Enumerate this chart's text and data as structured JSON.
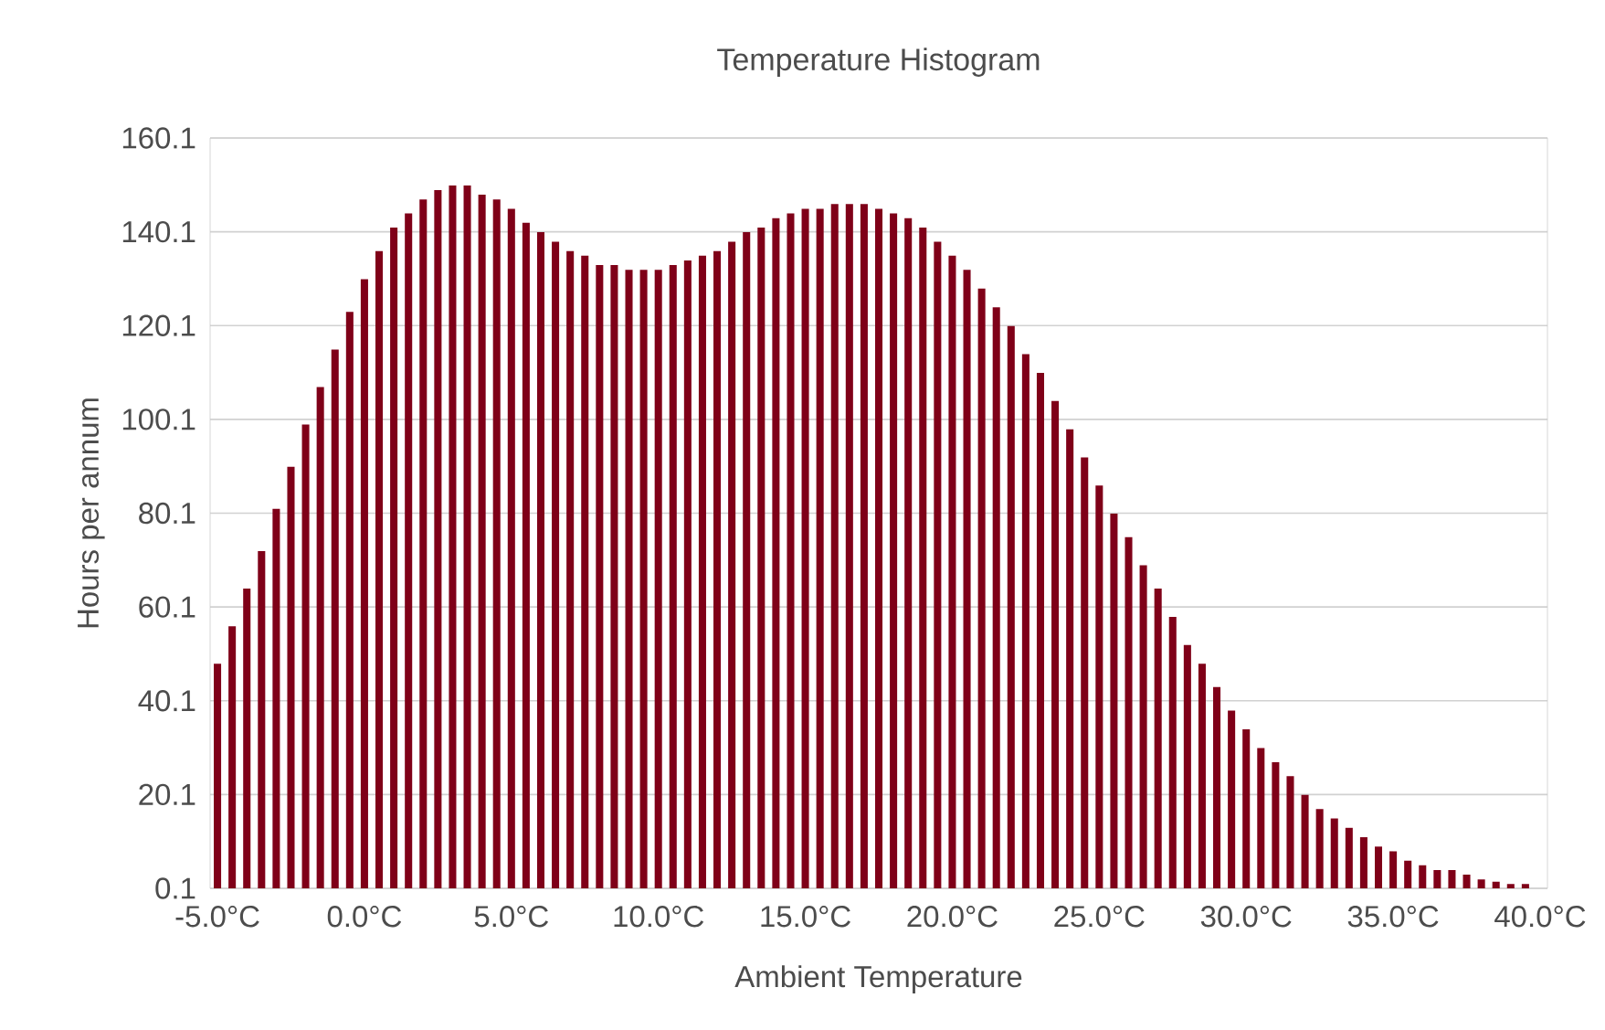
{
  "chart_data": {
    "type": "bar",
    "title": "Temperature Histogram",
    "xlabel": "Ambient Temperature",
    "ylabel": "Hours per annum",
    "x": [
      -5.0,
      -4.5,
      -4.0,
      -3.5,
      -3.0,
      -2.5,
      -2.0,
      -1.5,
      -1.0,
      -0.5,
      0.0,
      0.5,
      1.0,
      1.5,
      2.0,
      2.5,
      3.0,
      3.5,
      4.0,
      4.5,
      5.0,
      5.5,
      6.0,
      6.5,
      7.0,
      7.5,
      8.0,
      8.5,
      9.0,
      9.5,
      10.0,
      10.5,
      11.0,
      11.5,
      12.0,
      12.5,
      13.0,
      13.5,
      14.0,
      14.5,
      15.0,
      15.5,
      16.0,
      16.5,
      17.0,
      17.5,
      18.0,
      18.5,
      19.0,
      19.5,
      20.0,
      20.5,
      21.0,
      21.5,
      22.0,
      22.5,
      23.0,
      23.5,
      24.0,
      24.5,
      25.0,
      25.5,
      26.0,
      26.5,
      27.0,
      27.5,
      28.0,
      28.5,
      29.0,
      29.5,
      30.0,
      30.5,
      31.0,
      31.5,
      32.0,
      32.5,
      33.0,
      33.5,
      34.0,
      34.5,
      35.0,
      35.5,
      36.0,
      36.5,
      37.0,
      37.5,
      38.0,
      38.5,
      39.0,
      39.5
    ],
    "values": [
      48,
      56,
      64,
      72,
      81,
      90,
      99,
      107,
      115,
      123,
      130,
      136,
      141,
      144,
      147,
      149,
      150,
      150,
      148,
      147,
      145,
      142,
      140,
      138,
      136,
      135,
      133,
      133,
      132,
      132,
      132,
      133,
      134,
      135,
      136,
      138,
      140,
      141,
      143,
      144,
      145,
      145,
      146,
      146,
      146,
      145,
      144,
      143,
      141,
      138,
      135,
      132,
      128,
      124,
      120,
      114,
      110,
      104,
      98,
      92,
      86,
      80,
      75,
      69,
      64,
      58,
      52,
      48,
      43,
      38,
      34,
      30,
      27,
      24,
      20,
      17,
      15,
      13,
      11,
      9,
      8,
      6,
      5,
      4,
      4,
      3,
      2,
      1.5,
      1,
      1
    ],
    "color": "#7f0018",
    "xlim": [
      -5.25,
      40.25
    ],
    "xticks": [
      {
        "value": -5,
        "label": "-5.0°C"
      },
      {
        "value": 0,
        "label": "0.0°C"
      },
      {
        "value": 5,
        "label": "5.0°C"
      },
      {
        "value": 10,
        "label": "10.0°C"
      },
      {
        "value": 15,
        "label": "15.0°C"
      },
      {
        "value": 20,
        "label": "20.0°C"
      },
      {
        "value": 25,
        "label": "25.0°C"
      },
      {
        "value": 30,
        "label": "30.0°C"
      },
      {
        "value": 35,
        "label": "35.0°C"
      },
      {
        "value": 40,
        "label": "40.0°C"
      }
    ],
    "ylim": [
      0.1,
      160.1
    ],
    "yticks": [
      0.1,
      20.1,
      40.1,
      60.1,
      80.1,
      100.1,
      120.1,
      140.1,
      160.1
    ],
    "grid": "y"
  }
}
